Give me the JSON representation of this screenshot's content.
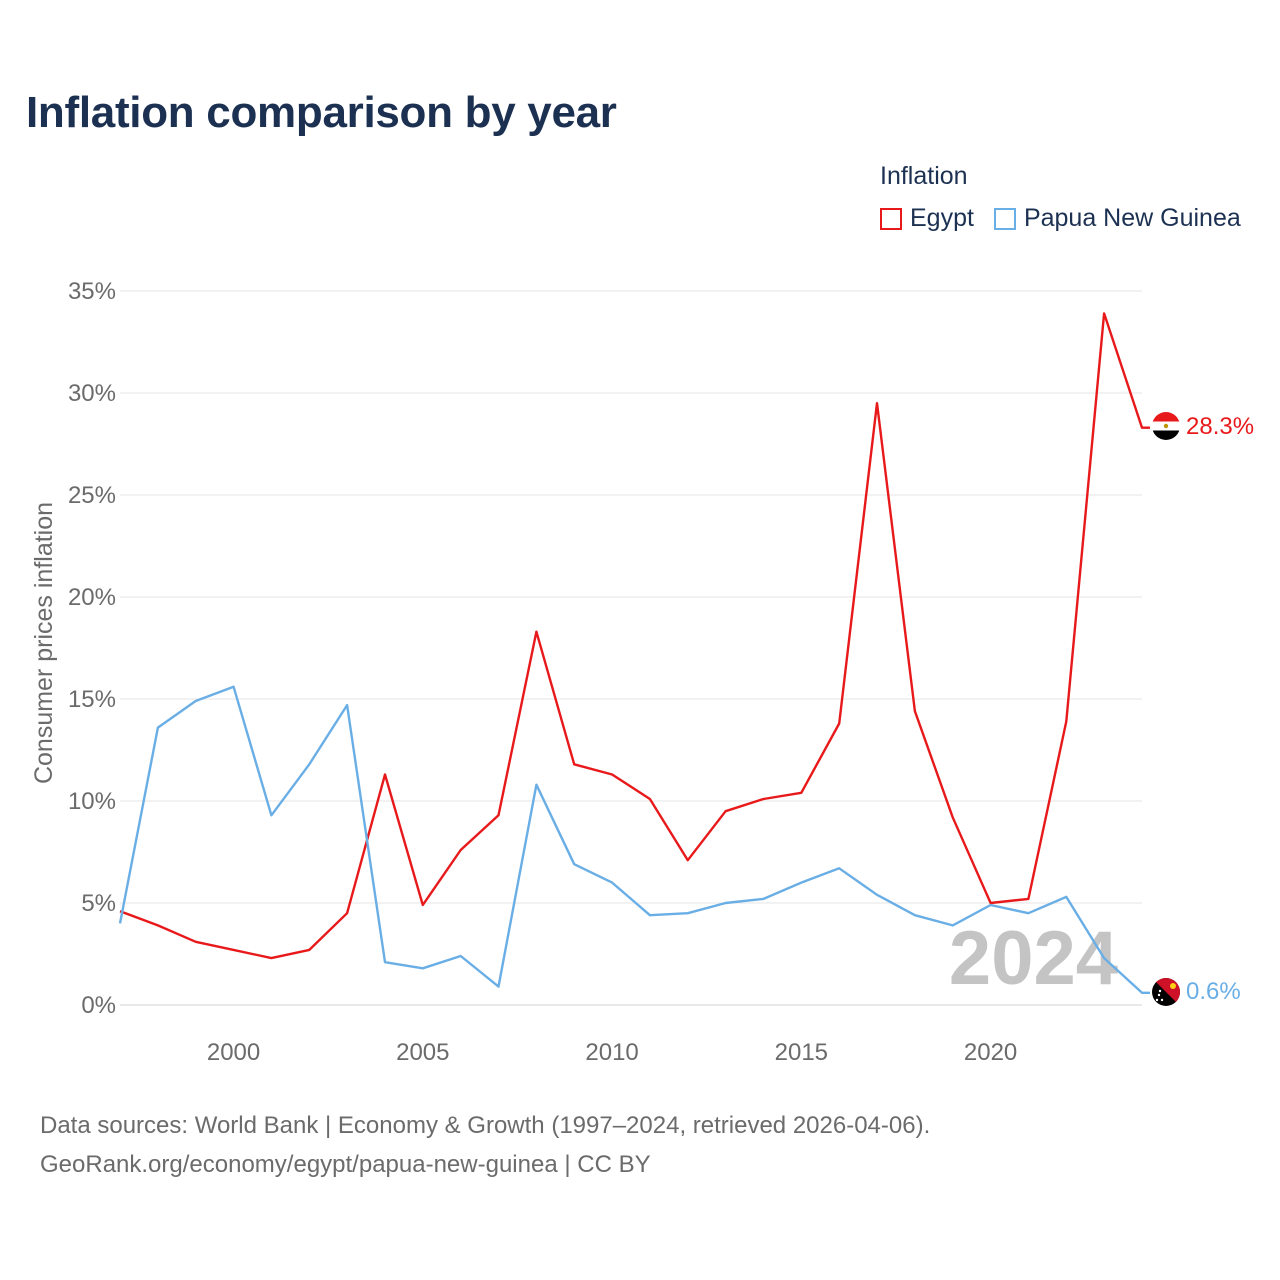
{
  "title": "Inflation comparison by year",
  "legend": {
    "title": "Inflation",
    "items": [
      {
        "label": "Egypt",
        "color": "#e8191b"
      },
      {
        "label": "Papua New Guinea",
        "color": "#6aaee6"
      }
    ]
  },
  "chart_data": {
    "type": "line",
    "title": "Inflation comparison by year",
    "xlabel": "",
    "ylabel": "Consumer prices inflation",
    "xlim": [
      1997,
      2024
    ],
    "ylim": [
      0,
      35
    ],
    "grid": true,
    "watermark_year": "2024",
    "x_ticks": [
      2000,
      2005,
      2010,
      2015,
      2020
    ],
    "x_tick_labels": [
      "2000",
      "2005",
      "2010",
      "2015",
      "2020"
    ],
    "y_ticks": [
      0,
      5,
      10,
      15,
      20,
      25,
      30,
      35
    ],
    "y_tick_labels": [
      "0%",
      "5%",
      "10%",
      "15%",
      "20%",
      "25%",
      "30%",
      "35%"
    ],
    "x": [
      1997,
      1998,
      1999,
      2000,
      2001,
      2002,
      2003,
      2004,
      2005,
      2006,
      2007,
      2008,
      2009,
      2010,
      2011,
      2012,
      2013,
      2014,
      2015,
      2016,
      2017,
      2018,
      2019,
      2020,
      2021,
      2022,
      2023,
      2024
    ],
    "series": [
      {
        "name": "Egypt",
        "color": "#e8191b",
        "end_label": "28.3%",
        "values": [
          4.6,
          3.9,
          3.1,
          2.7,
          2.3,
          2.7,
          4.5,
          11.3,
          4.9,
          7.6,
          9.3,
          18.3,
          11.8,
          11.3,
          10.1,
          7.1,
          9.5,
          10.1,
          10.4,
          13.8,
          29.5,
          14.4,
          9.2,
          5.0,
          5.2,
          13.9,
          33.9,
          28.3
        ]
      },
      {
        "name": "Papua New Guinea",
        "color": "#6aaee6",
        "end_label": "0.6%",
        "values": [
          4.0,
          13.6,
          14.9,
          15.6,
          9.3,
          11.8,
          14.7,
          2.1,
          1.8,
          2.4,
          0.9,
          10.8,
          6.9,
          6.0,
          4.4,
          4.5,
          5.0,
          5.2,
          6.0,
          6.7,
          5.4,
          4.4,
          3.9,
          4.9,
          4.5,
          5.3,
          2.3,
          0.6
        ]
      }
    ]
  },
  "footer": {
    "line1": "Data sources: World Bank | Economy & Growth (1997–2024, retrieved 2026-04-06).",
    "line2": "GeoRank.org/economy/egypt/papua-new-guinea | CC BY"
  }
}
